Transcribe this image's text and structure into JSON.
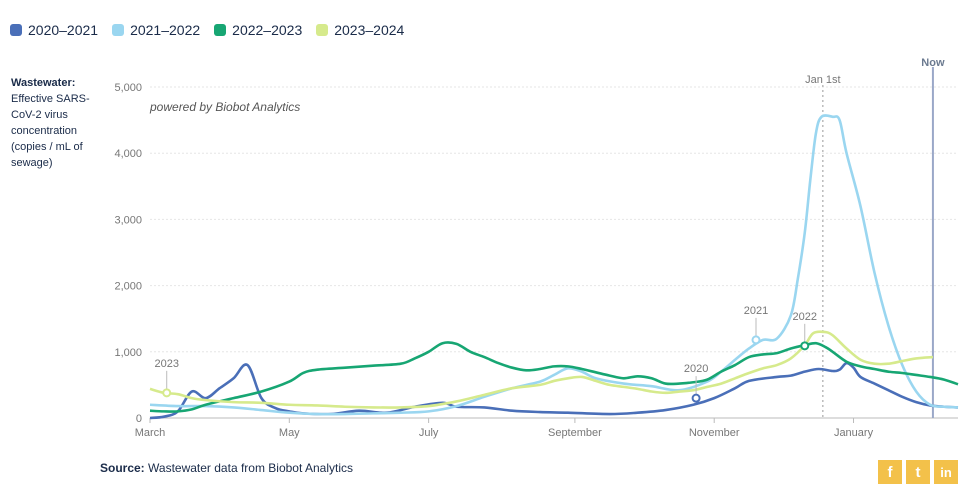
{
  "legend": [
    {
      "label": "2020–2021",
      "color": "#4a6fb8"
    },
    {
      "label": "2021–2022",
      "color": "#9ad6f0"
    },
    {
      "label": "2022–2023",
      "color": "#17a673"
    },
    {
      "label": "2023–2024",
      "color": "#d6ea8c"
    }
  ],
  "ylabel": {
    "bold": "Wastewater:",
    "text": "Effective SARS-CoV-2 virus concentration (copies / mL of sewage)"
  },
  "powered_by": "powered by Biobot Analytics",
  "source": {
    "bold": "Source:",
    "text": " Wastewater data from Biobot Analytics"
  },
  "social": [
    {
      "name": "facebook-icon",
      "glyph": "f"
    },
    {
      "name": "twitter-icon",
      "glyph": "t"
    },
    {
      "name": "linkedin-icon",
      "glyph": "in"
    }
  ],
  "chart_data": {
    "type": "line",
    "ylim": [
      0,
      5000
    ],
    "yticks": [
      0,
      1000,
      2000,
      3000,
      4000,
      5000
    ],
    "ytick_labels": [
      "0",
      "1,000",
      "2,000",
      "3,000",
      "4,000",
      "5,000"
    ],
    "xlim": [
      0,
      58
    ],
    "xticks": [
      {
        "x": 0,
        "label": "March"
      },
      {
        "x": 10,
        "label": "May"
      },
      {
        "x": 20,
        "label": "July"
      },
      {
        "x": 30.5,
        "label": "September"
      },
      {
        "x": 40.5,
        "label": "November"
      },
      {
        "x": 50.5,
        "label": "January"
      }
    ],
    "vline_jan1": {
      "x": 48.3,
      "label": "Jan 1st"
    },
    "vline_now": {
      "x": 56.2,
      "label": "Now"
    },
    "grid": true,
    "series": [
      {
        "name": "2020–2021",
        "color": "#4a6fb8",
        "points": [
          [
            0,
            0
          ],
          [
            1,
            20
          ],
          [
            2,
            100
          ],
          [
            3,
            400
          ],
          [
            4,
            300
          ],
          [
            5,
            450
          ],
          [
            6,
            600
          ],
          [
            7,
            800
          ],
          [
            8,
            300
          ],
          [
            9,
            150
          ],
          [
            10,
            100
          ],
          [
            11,
            70
          ],
          [
            13,
            60
          ],
          [
            15,
            110
          ],
          [
            17,
            80
          ],
          [
            19,
            170
          ],
          [
            21,
            230
          ],
          [
            22,
            170
          ],
          [
            24,
            160
          ],
          [
            26,
            110
          ],
          [
            28,
            90
          ],
          [
            30,
            80
          ],
          [
            33,
            60
          ],
          [
            35,
            80
          ],
          [
            37,
            120
          ],
          [
            39,
            200
          ],
          [
            40.5,
            300
          ],
          [
            42,
            450
          ],
          [
            43,
            560
          ],
          [
            45,
            620
          ],
          [
            46,
            640
          ],
          [
            47,
            700
          ],
          [
            48,
            740
          ],
          [
            49,
            710
          ],
          [
            49.5,
            730
          ],
          [
            50,
            830
          ],
          [
            50.5,
            760
          ],
          [
            51,
            620
          ],
          [
            52,
            520
          ],
          [
            53,
            420
          ],
          [
            54,
            320
          ],
          [
            55,
            240
          ],
          [
            56,
            190
          ],
          [
            57,
            170
          ],
          [
            58,
            160
          ]
        ]
      },
      {
        "name": "2021–2022",
        "color": "#9ad6f0",
        "points": [
          [
            0,
            200
          ],
          [
            2,
            180
          ],
          [
            4,
            180
          ],
          [
            6,
            160
          ],
          [
            8,
            120
          ],
          [
            10,
            80
          ],
          [
            12,
            60
          ],
          [
            14,
            60
          ],
          [
            16,
            70
          ],
          [
            18,
            80
          ],
          [
            20,
            100
          ],
          [
            22,
            180
          ],
          [
            24,
            320
          ],
          [
            26,
            450
          ],
          [
            28,
            550
          ],
          [
            29,
            650
          ],
          [
            30,
            750
          ],
          [
            31,
            700
          ],
          [
            32,
            600
          ],
          [
            34,
            520
          ],
          [
            36,
            480
          ],
          [
            38,
            420
          ],
          [
            40,
            550
          ],
          [
            41,
            700
          ],
          [
            42,
            880
          ],
          [
            43,
            1050
          ],
          [
            44,
            1180
          ],
          [
            45,
            1200
          ],
          [
            46,
            1550
          ],
          [
            46.5,
            2100
          ],
          [
            47,
            2800
          ],
          [
            47.4,
            3600
          ],
          [
            47.8,
            4300
          ],
          [
            48.2,
            4550
          ],
          [
            49,
            4550
          ],
          [
            49.5,
            4500
          ],
          [
            50,
            4000
          ],
          [
            51,
            3200
          ],
          [
            52,
            2200
          ],
          [
            53,
            1400
          ],
          [
            54,
            800
          ],
          [
            55,
            400
          ],
          [
            56,
            200
          ],
          [
            57,
            170
          ],
          [
            58,
            160
          ]
        ]
      },
      {
        "name": "2022–2023",
        "color": "#17a673",
        "points": [
          [
            0,
            110
          ],
          [
            1,
            100
          ],
          [
            2,
            100
          ],
          [
            3,
            130
          ],
          [
            4,
            200
          ],
          [
            6,
            300
          ],
          [
            8,
            400
          ],
          [
            10,
            550
          ],
          [
            11,
            680
          ],
          [
            12,
            730
          ],
          [
            14,
            760
          ],
          [
            16,
            790
          ],
          [
            18,
            820
          ],
          [
            19,
            900
          ],
          [
            20,
            1000
          ],
          [
            21,
            1130
          ],
          [
            22,
            1120
          ],
          [
            23,
            1000
          ],
          [
            24,
            920
          ],
          [
            25,
            830
          ],
          [
            26,
            760
          ],
          [
            27,
            720
          ],
          [
            28,
            740
          ],
          [
            29,
            780
          ],
          [
            30,
            780
          ],
          [
            31,
            740
          ],
          [
            32,
            690
          ],
          [
            33,
            640
          ],
          [
            34,
            600
          ],
          [
            35,
            630
          ],
          [
            36,
            600
          ],
          [
            37,
            520
          ],
          [
            38,
            520
          ],
          [
            39,
            540
          ],
          [
            40,
            580
          ],
          [
            41,
            700
          ],
          [
            42,
            800
          ],
          [
            43,
            920
          ],
          [
            44,
            960
          ],
          [
            45,
            980
          ],
          [
            46,
            1050
          ],
          [
            47,
            1100
          ],
          [
            47.8,
            1130
          ],
          [
            48.5,
            1070
          ],
          [
            49,
            1000
          ],
          [
            50,
            850
          ],
          [
            51,
            780
          ],
          [
            52,
            740
          ],
          [
            53,
            700
          ],
          [
            54,
            680
          ],
          [
            55,
            650
          ],
          [
            56,
            620
          ],
          [
            57,
            580
          ],
          [
            58,
            510
          ]
        ]
      },
      {
        "name": "2023–2024",
        "color": "#d6ea8c",
        "points": [
          [
            0,
            440
          ],
          [
            1,
            380
          ],
          [
            2,
            360
          ],
          [
            3,
            300
          ],
          [
            4,
            270
          ],
          [
            6,
            240
          ],
          [
            8,
            230
          ],
          [
            10,
            200
          ],
          [
            12,
            190
          ],
          [
            14,
            170
          ],
          [
            16,
            160
          ],
          [
            18,
            160
          ],
          [
            20,
            180
          ],
          [
            22,
            250
          ],
          [
            24,
            350
          ],
          [
            26,
            450
          ],
          [
            28,
            500
          ],
          [
            29,
            560
          ],
          [
            30,
            600
          ],
          [
            31,
            620
          ],
          [
            32,
            560
          ],
          [
            33,
            500
          ],
          [
            34,
            470
          ],
          [
            35,
            440
          ],
          [
            36,
            400
          ],
          [
            37,
            380
          ],
          [
            38,
            400
          ],
          [
            39,
            420
          ],
          [
            40,
            470
          ],
          [
            41,
            520
          ],
          [
            42,
            600
          ],
          [
            43,
            680
          ],
          [
            44,
            750
          ],
          [
            45,
            800
          ],
          [
            46,
            900
          ],
          [
            47,
            1100
          ],
          [
            47.6,
            1280
          ],
          [
            48.4,
            1300
          ],
          [
            49,
            1250
          ],
          [
            50,
            1050
          ],
          [
            51,
            880
          ],
          [
            52,
            820
          ],
          [
            53,
            820
          ],
          [
            54,
            860
          ],
          [
            55,
            900
          ],
          [
            56.2,
            920
          ]
        ]
      }
    ],
    "annotations": [
      {
        "label": "2023",
        "x": 1.2,
        "y": 380,
        "color": "#d6ea8c"
      },
      {
        "label": "2021",
        "x": 43.5,
        "y": 1180,
        "color": "#9ad6f0"
      },
      {
        "label": "2022",
        "x": 47.0,
        "y": 1090,
        "color": "#17a673"
      },
      {
        "label": "2020",
        "x": 39.2,
        "y": 300,
        "color": "#4a6fb8"
      }
    ]
  }
}
